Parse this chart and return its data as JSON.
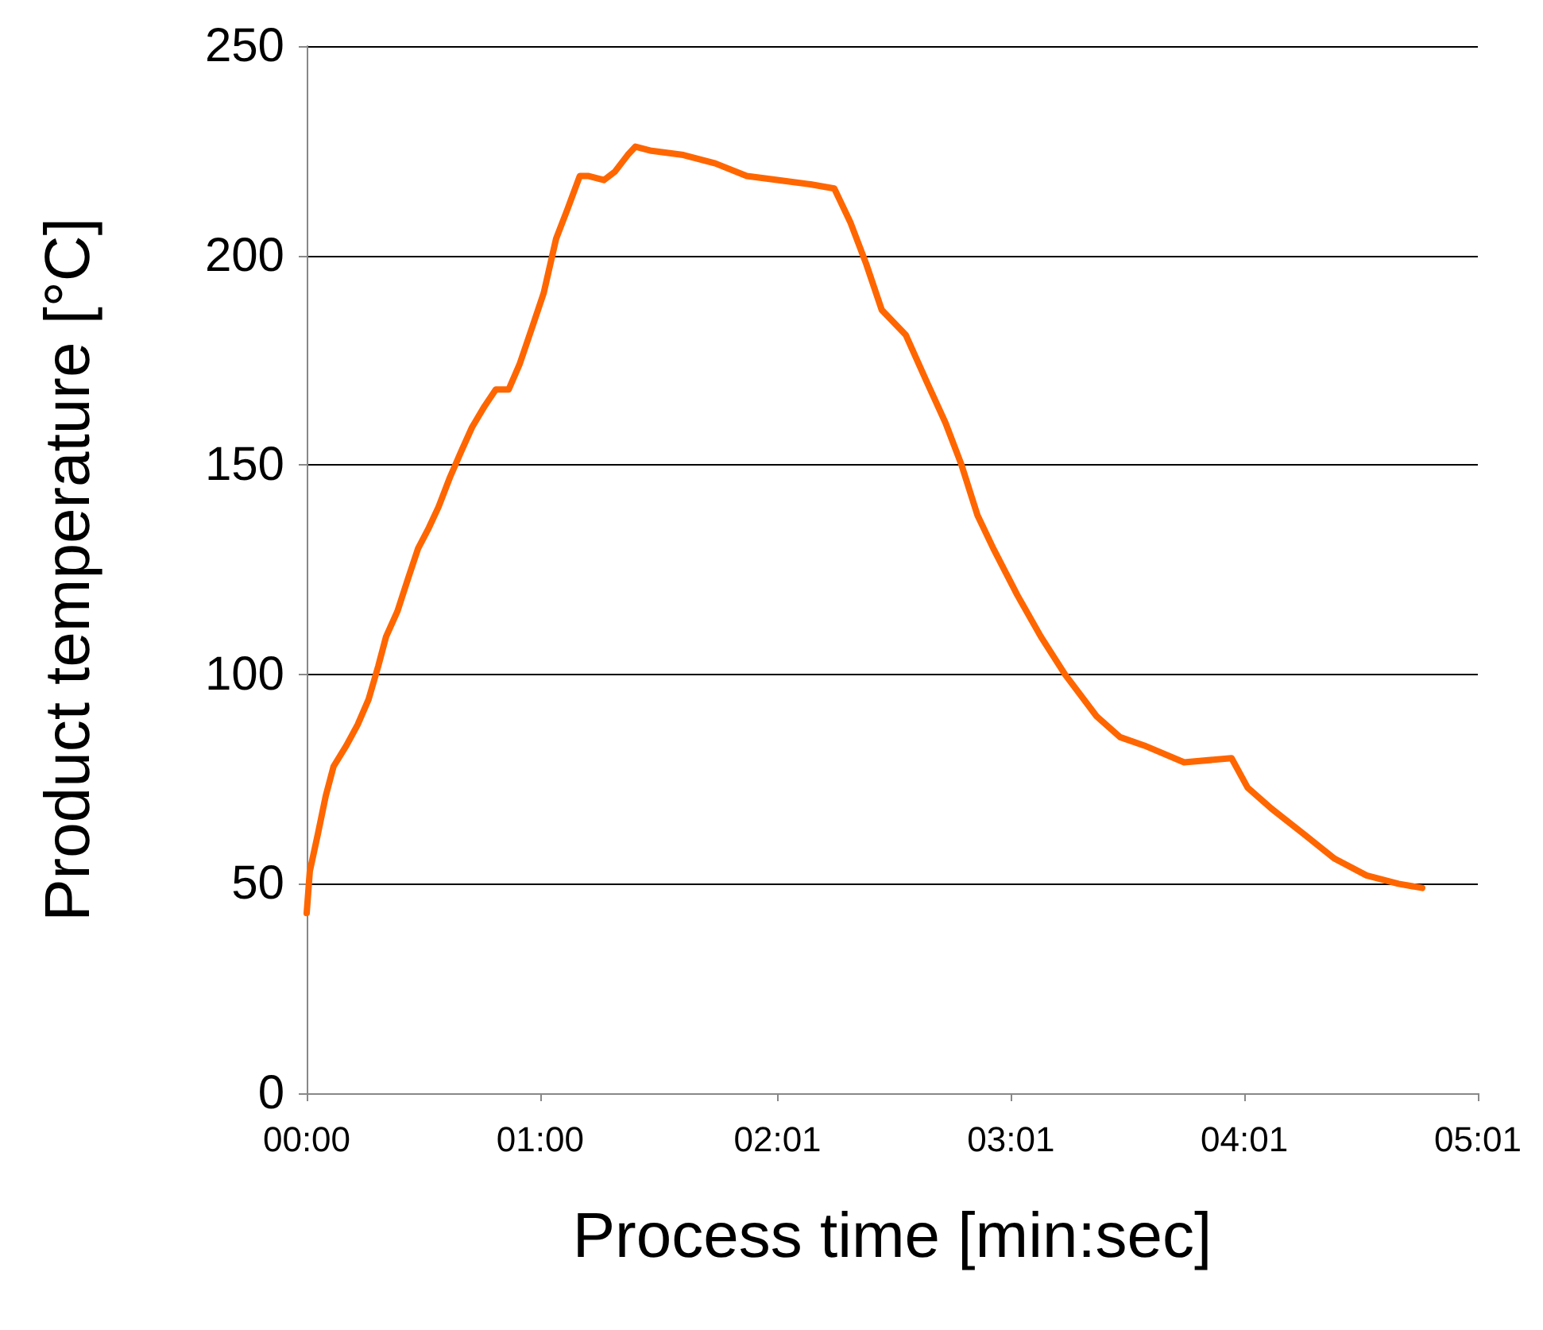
{
  "chart_data": {
    "type": "line",
    "xlabel": "Process time [min:sec]",
    "ylabel": "Product temperature [°C]",
    "x": [
      0,
      0.8,
      2.9,
      4.9,
      6.9,
      10.2,
      13.1,
      15.9,
      18.4,
      20.4,
      23.3,
      26.1,
      28.6,
      31.4,
      33.9,
      36.8,
      39.6,
      42.5,
      45.7,
      48.6,
      51.9,
      54.7,
      58,
      60.9,
      64.1,
      67,
      70.2,
      72.3,
      76.4,
      79.2,
      82.5,
      84.5,
      88.6,
      96.8,
      105,
      113.1,
      121.3,
      129.5,
      135.6,
      139.7,
      143.8,
      147.8,
      154,
      159.3,
      164.2,
      168.3,
      172.4,
      176.5,
      182.6,
      188.7,
      194.9,
      203,
      209.1,
      215.3,
      225.5,
      237.7,
      241.8,
      247.9,
      256.1,
      264.2,
      272.4,
      280.6,
      286.7
    ],
    "series": [
      {
        "color": "#ff6600",
        "values": [
          43,
          53,
          62,
          71,
          78,
          83,
          88,
          94,
          102,
          109,
          115,
          123,
          130,
          135,
          140,
          147,
          153,
          159,
          164,
          168,
          168,
          174,
          183,
          191,
          204,
          211,
          219,
          219,
          218,
          220,
          224,
          226,
          225,
          224,
          222,
          219,
          218,
          217,
          216,
          208,
          198,
          187,
          181,
          170,
          160,
          150,
          138,
          130,
          119,
          109,
          100,
          90,
          85,
          83,
          79,
          80,
          73,
          68,
          62,
          56,
          52,
          50,
          49
        ]
      }
    ],
    "xlim": [
      0,
      301
    ],
    "xticks": [
      {
        "value": 0,
        "label": "00:00"
      },
      {
        "value": 60,
        "label": "01:00"
      },
      {
        "value": 121,
        "label": "02:01"
      },
      {
        "value": 181,
        "label": "03:01"
      },
      {
        "value": 241,
        "label": "04:01"
      },
      {
        "value": 301,
        "label": "05:01"
      }
    ],
    "ylim": [
      0,
      250
    ],
    "yticks": [
      0,
      50,
      100,
      150,
      200,
      250
    ],
    "grid": "y",
    "marker": "none",
    "line_style": "solid"
  }
}
